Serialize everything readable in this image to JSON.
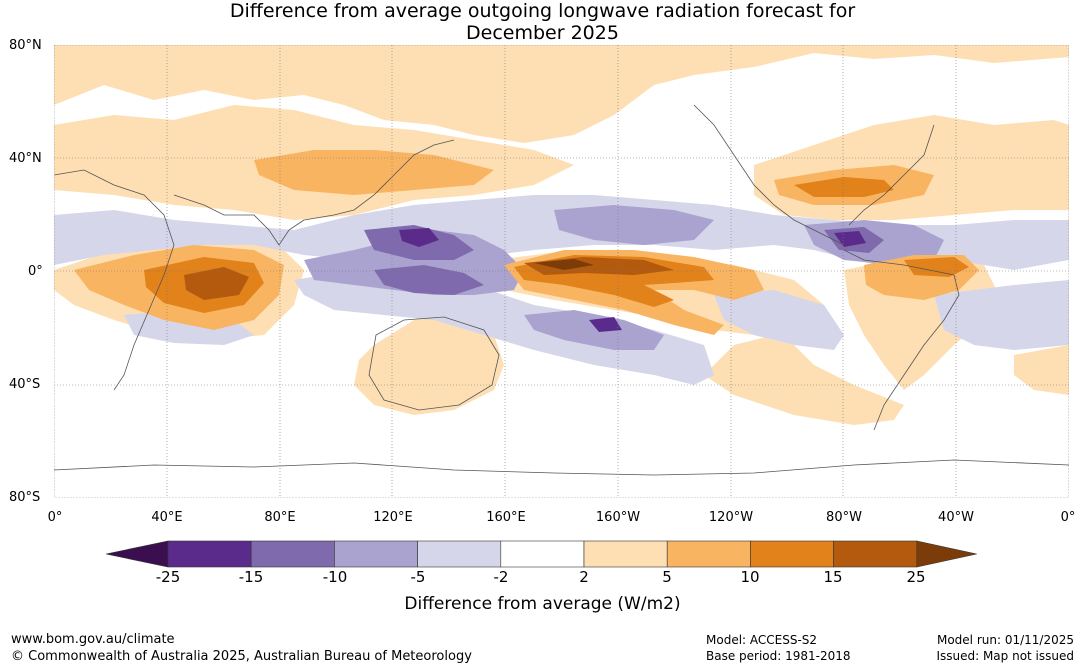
{
  "title": {
    "line1": "Difference from average outgoing longwave radiation forecast for",
    "line2": "December 2025"
  },
  "axes": {
    "lat_labels": [
      "80°N",
      "40°N",
      "0°",
      "40°S",
      "80°S"
    ],
    "lon_labels": [
      "0°",
      "40°E",
      "80°E",
      "120°E",
      "160°E",
      "160°W",
      "120°W",
      "80°W",
      "40°W",
      "0°"
    ]
  },
  "colorbar": {
    "ticks": [
      "-25",
      "-15",
      "-10",
      "-5",
      "-2",
      "2",
      "5",
      "10",
      "15",
      "25"
    ],
    "colors": [
      "#3b0f4f",
      "#5b2b8c",
      "#7e6aac",
      "#aaa3cf",
      "#d6d6ea",
      "#ffffff",
      "#fddfb3",
      "#f9b462",
      "#e1821a",
      "#b45a0e",
      "#7c3c0a"
    ],
    "label": "Difference from average (W/m2)"
  },
  "footer": {
    "url": "www.bom.gov.au/climate",
    "copyright": "© Commonwealth of Australia 2025, Australian Bureau of Meteorology",
    "model": "Model: ACCESS-S2",
    "base_period": "Base period: 1981-2018",
    "model_run": "Model run: 01/11/2025",
    "issued": "Issued: Map not issued"
  }
}
